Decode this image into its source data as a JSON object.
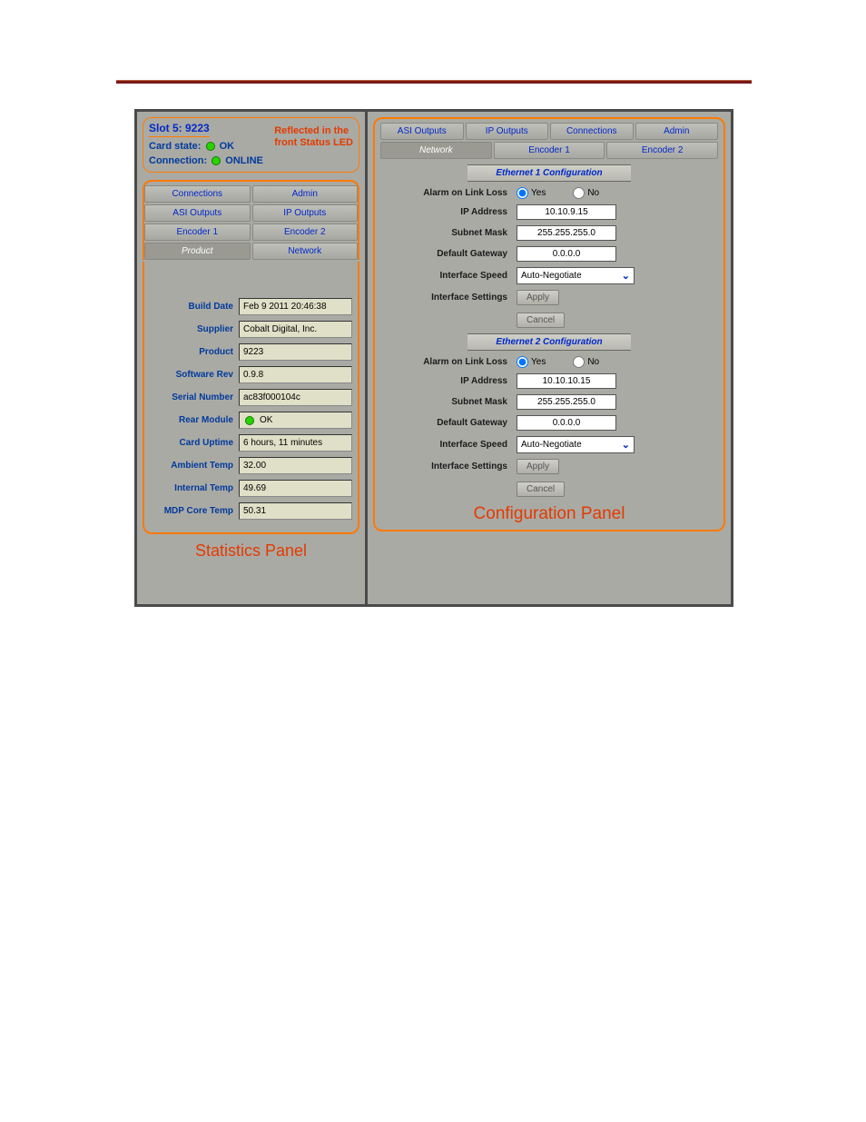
{
  "page": {
    "rule_color": "#7a1818"
  },
  "slot": {
    "title": "Slot 5: 9223",
    "reflected_line1": "Reflected in the",
    "reflected_line2": "front Status LED",
    "card_state_label": "Card state:",
    "card_state_value": "OK",
    "connection_label": "Connection:",
    "connection_value": "ONLINE"
  },
  "left_tabs": {
    "row1": [
      "Connections",
      "Admin"
    ],
    "row2": [
      "ASI Outputs",
      "IP Outputs"
    ],
    "row3": [
      "Encoder 1",
      "Encoder 2"
    ],
    "row4": [
      "Product",
      "Network"
    ]
  },
  "stats": [
    {
      "label": "Build Date",
      "value": "Feb 9 2011 20:46:38"
    },
    {
      "label": "Supplier",
      "value": "Cobalt Digital, Inc."
    },
    {
      "label": "Product",
      "value": "9223"
    },
    {
      "label": "Software Rev",
      "value": "0.9.8"
    },
    {
      "label": "Serial Number",
      "value": "ac83f000104c"
    },
    {
      "label": "Rear Module",
      "value": "OK",
      "led": "#26d400"
    },
    {
      "label": "Card Uptime",
      "value": "6 hours, 11 minutes"
    },
    {
      "label": "Ambient Temp",
      "value": "32.00"
    },
    {
      "label": "Internal Temp",
      "value": "49.69"
    },
    {
      "label": "MDP Core Temp",
      "value": "50.31"
    }
  ],
  "left_caption": "Statistics Panel",
  "right_tabs": {
    "row1": [
      "ASI Outputs",
      "IP Outputs",
      "Connections",
      "Admin"
    ],
    "row2": [
      "Network",
      "Encoder 1",
      "Encoder 2"
    ]
  },
  "eth1": {
    "header": "Ethernet 1 Configuration",
    "alarm_label": "Alarm on Link Loss",
    "yes": "Yes",
    "no": "No",
    "ip_label": "IP Address",
    "ip_value": "10.10.9.15",
    "subnet_label": "Subnet Mask",
    "subnet_value": "255.255.255.0",
    "gw_label": "Default Gateway",
    "gw_value": "0.0.0.0",
    "speed_label": "Interface Speed",
    "speed_value": "Auto-Negotiate",
    "settings_label": "Interface Settings",
    "apply": "Apply",
    "cancel": "Cancel"
  },
  "eth2": {
    "header": "Ethernet 2 Configuration",
    "alarm_label": "Alarm on Link Loss",
    "yes": "Yes",
    "no": "No",
    "ip_label": "IP Address",
    "ip_value": "10.10.10.15",
    "subnet_label": "Subnet Mask",
    "subnet_value": "255.255.255.0",
    "gw_label": "Default Gateway",
    "gw_value": "0.0.0.0",
    "speed_label": "Interface Speed",
    "speed_value": "Auto-Negotiate",
    "settings_label": "Interface Settings",
    "apply": "Apply",
    "cancel": "Cancel"
  },
  "right_caption": "Configuration Panel"
}
